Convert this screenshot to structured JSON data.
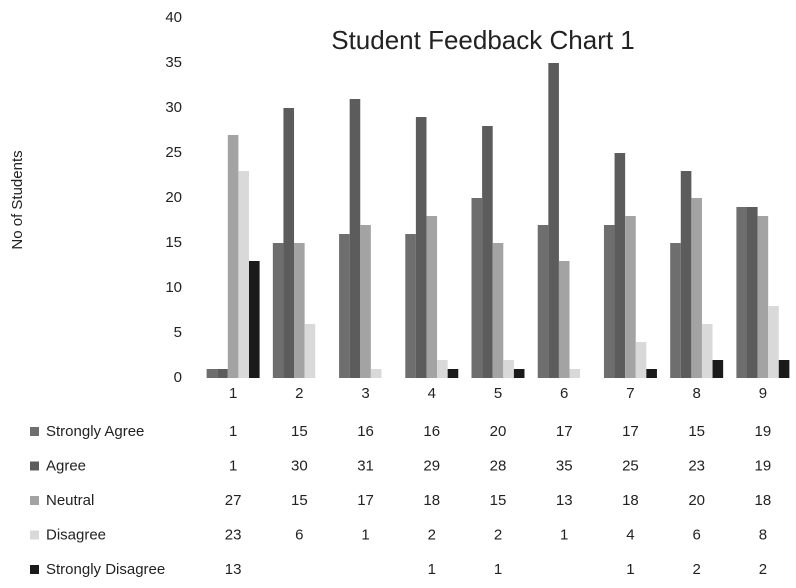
{
  "chart_data": {
    "type": "bar",
    "title": "Student Feedback Chart 1",
    "y_label": "No of Students",
    "categories": [
      "1",
      "2",
      "3",
      "4",
      "5",
      "6",
      "7",
      "8",
      "9"
    ],
    "series": [
      {
        "name": "Strongly Agree",
        "color": "#6e6e6e",
        "values": [
          1,
          15,
          16,
          16,
          20,
          17,
          17,
          15,
          19
        ]
      },
      {
        "name": "Agree",
        "color": "#5c5c5c",
        "values": [
          1,
          30,
          31,
          29,
          28,
          35,
          25,
          23,
          19
        ]
      },
      {
        "name": "Neutral",
        "color": "#a3a3a3",
        "values": [
          27,
          15,
          17,
          18,
          15,
          13,
          18,
          20,
          18
        ]
      },
      {
        "name": "Disagree",
        "color": "#d9d9d9",
        "values": [
          23,
          6,
          1,
          2,
          2,
          1,
          4,
          6,
          8
        ]
      },
      {
        "name": "Strongly Disagree",
        "color": "#1a1a1a",
        "values": [
          13,
          null,
          null,
          1,
          1,
          null,
          1,
          2,
          2
        ]
      }
    ],
    "ylim": [
      0,
      40
    ],
    "yticks": [
      0,
      5,
      10,
      15,
      20,
      25,
      30,
      35,
      40
    ],
    "grid": false
  }
}
